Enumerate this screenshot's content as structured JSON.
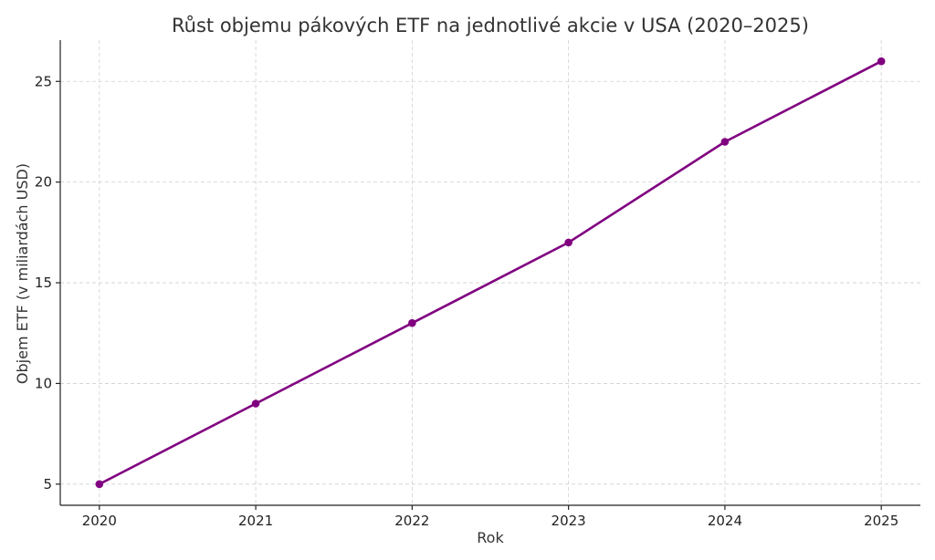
{
  "chart_data": {
    "type": "line",
    "title": "Růst objemu pákových ETF na jednotlivé akcie v USA (2020–2025)",
    "xlabel": "Rok",
    "ylabel": "Objem ETF (v miliardách USD)",
    "x": [
      2020,
      2021,
      2022,
      2023,
      2024,
      2025
    ],
    "series": [
      {
        "values": [
          5,
          9,
          13,
          17,
          22,
          26
        ],
        "color": "#800080"
      }
    ],
    "xlim": [
      2019.75,
      2025.25
    ],
    "ylim": [
      3.95,
      27.05
    ],
    "yticks": [
      5,
      10,
      15,
      20,
      25
    ],
    "grid": true,
    "marker": "circle"
  }
}
